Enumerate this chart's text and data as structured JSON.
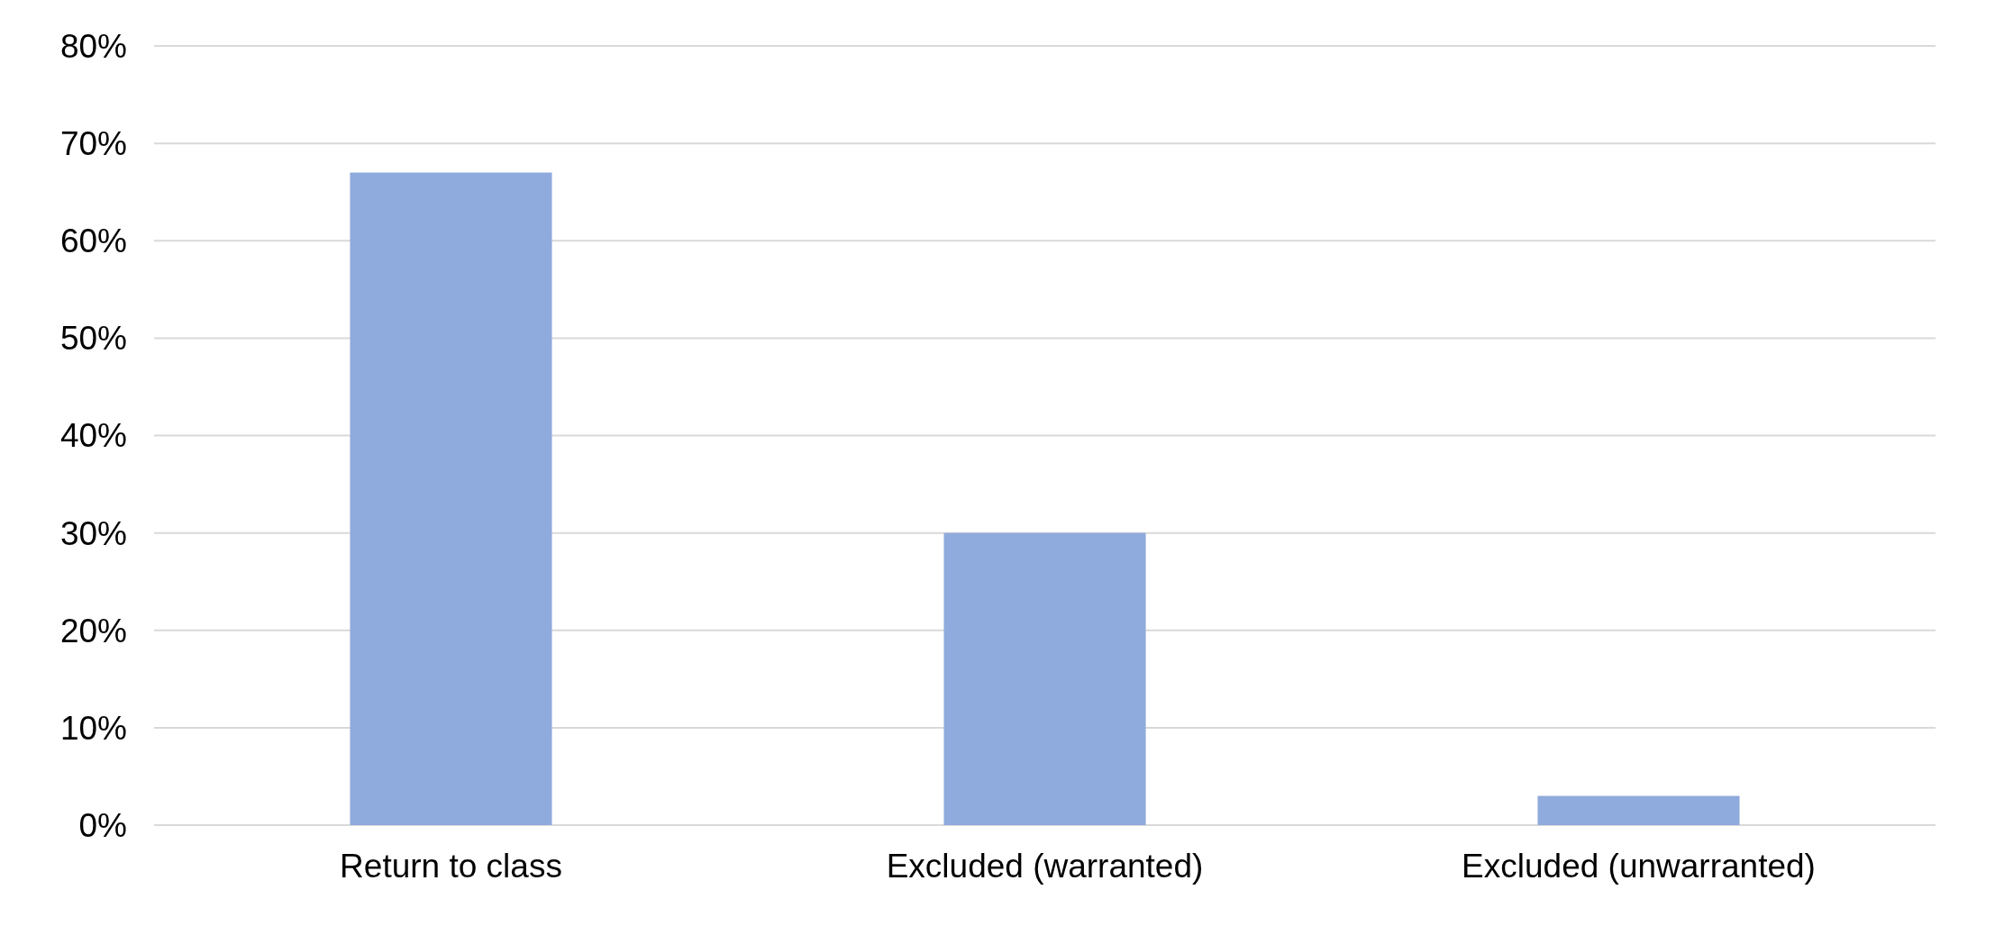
{
  "chart_data": {
    "type": "bar",
    "categories": [
      "Return to class",
      "Excluded (warranted)",
      "Excluded (unwarranted)"
    ],
    "values": [
      67,
      30,
      3
    ],
    "color": "#8faadc",
    "ylim": [
      0,
      80
    ],
    "yticks": [
      {
        "value": 0,
        "label": "0%"
      },
      {
        "value": 10,
        "label": "10%"
      },
      {
        "value": 20,
        "label": "20%"
      },
      {
        "value": 30,
        "label": "30%"
      },
      {
        "value": 40,
        "label": "40%"
      },
      {
        "value": 50,
        "label": "50%"
      },
      {
        "value": 60,
        "label": "60%"
      },
      {
        "value": 70,
        "label": "70%"
      },
      {
        "value": 80,
        "label": "80%"
      }
    ],
    "grid": "y"
  }
}
